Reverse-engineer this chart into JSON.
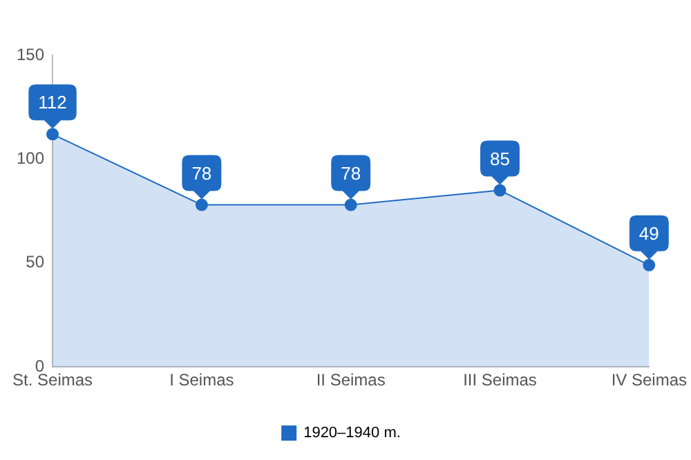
{
  "chart_data": {
    "type": "area",
    "categories": [
      "St. Seimas",
      "I Seimas",
      "II Seimas",
      "III Seimas",
      "IV Seimas"
    ],
    "series": [
      {
        "name": "1920–1940 m.",
        "color": "#1f6bc4",
        "values": [
          112,
          78,
          78,
          85,
          49
        ]
      }
    ],
    "ylim": [
      0,
      150
    ],
    "yticks": [
      0,
      50,
      100,
      150
    ],
    "grid": false,
    "legend": "bottom",
    "marker": "circle",
    "data_labels": true
  }
}
